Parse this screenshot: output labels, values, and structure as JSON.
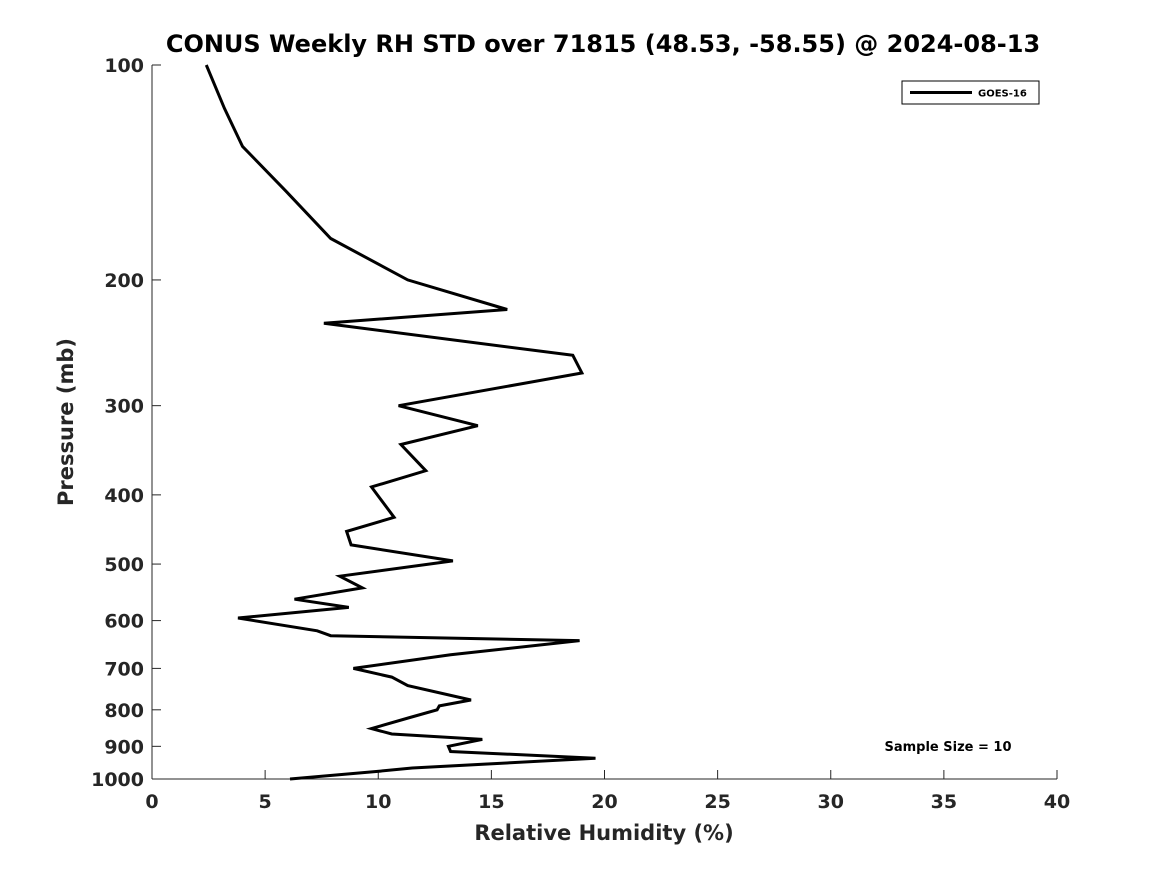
{
  "chart_data": {
    "type": "line",
    "title": "CONUS Weekly RH STD over 71815 (48.53, -58.55) @ 2024-08-13",
    "xlabel": "Relative Humidity (%)",
    "ylabel": "Pressure (mb)",
    "xlim": [
      0,
      40
    ],
    "ylim": [
      100,
      1000
    ],
    "y_scale": "log",
    "y_reversed": true,
    "grid": false,
    "legend_position": "top-right",
    "x_ticks": [
      "0",
      "5",
      "10",
      "15",
      "20",
      "25",
      "30",
      "35",
      "40"
    ],
    "y_ticks": [
      "100",
      "200",
      "300",
      "400",
      "500",
      "600",
      "700",
      "800",
      "900",
      "1000"
    ],
    "annotation": "Sample Size = 10",
    "series": [
      {
        "name": "GOES-16",
        "color": "#000000",
        "x": [
          2.4,
          3.2,
          4.0,
          5.9,
          7.9,
          11.3,
          15.7,
          7.6,
          18.6,
          19.0,
          10.9,
          14.4,
          11.0,
          12.1,
          9.7,
          10.7,
          8.6,
          8.8,
          13.3,
          8.3,
          9.3,
          6.3,
          8.7,
          3.8,
          7.3,
          7.9,
          18.9,
          13.2,
          8.9,
          10.6,
          11.3,
          14.1,
          12.7,
          12.6,
          11.4,
          9.7,
          10.6,
          14.6,
          13.1,
          13.2,
          19.6,
          11.5,
          10.1,
          6.1
        ],
        "y": [
          100,
          115,
          130,
          150,
          175,
          200,
          220,
          230,
          255,
          270,
          300,
          320,
          340,
          370,
          390,
          430,
          450,
          470,
          495,
          520,
          540,
          560,
          575,
          595,
          620,
          630,
          640,
          670,
          700,
          720,
          740,
          775,
          790,
          800,
          820,
          850,
          865,
          880,
          900,
          915,
          935,
          965,
          975,
          1000
        ]
      }
    ]
  }
}
